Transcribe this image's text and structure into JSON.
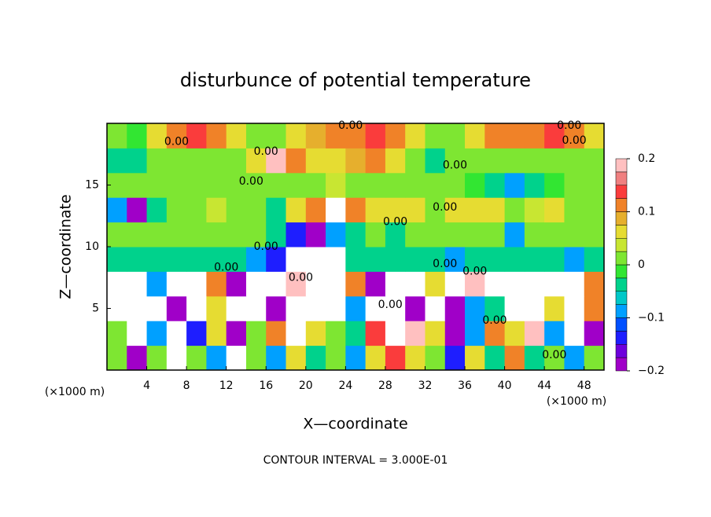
{
  "chart_data": {
    "type": "heatmap",
    "title": "disturbunce of potential temperature",
    "x_label": "X—coordinate",
    "y_label": "Z—coordinate",
    "x_units": "(×1000 m)",
    "y_units": "(×1000 m)",
    "annotation": "CONTOUR INTERVAL = 3.000E-01",
    "xlim": [
      0,
      50
    ],
    "ylim": [
      0,
      20
    ],
    "xticks": [
      4,
      8,
      12,
      16,
      20,
      24,
      28,
      32,
      36,
      40,
      44,
      48
    ],
    "yticks": [
      5,
      10,
      15
    ],
    "x": [
      1,
      3,
      5,
      7,
      9,
      11,
      13,
      15,
      17,
      19,
      21,
      23,
      25,
      27,
      29,
      31,
      33,
      35,
      37,
      39,
      41,
      43,
      45,
      47,
      49
    ],
    "y": [
      1,
      3,
      5,
      7,
      9,
      11,
      13,
      15,
      17,
      19
    ],
    "z": [
      [
        0.02,
        -0.2,
        0.0,
        -0.3,
        0.0,
        -0.1,
        -0.3,
        0.0,
        -0.1,
        0.05,
        -0.05,
        0.0,
        -0.1,
        0.05,
        0.15,
        0.05,
        0.0,
        -0.15,
        0.05,
        -0.05,
        0.1,
        -0.05,
        0.0,
        -0.1,
        0.02
      ],
      [
        0.0,
        -0.3,
        -0.1,
        -0.3,
        -0.15,
        0.05,
        -0.2,
        0.0,
        0.1,
        -0.3,
        0.05,
        0.0,
        -0.05,
        0.15,
        0.3,
        0.2,
        0.05,
        -0.2,
        -0.1,
        0.1,
        0.05,
        0.2,
        -0.1,
        -0.3,
        -0.2
      ],
      [
        -0.3,
        -0.25,
        -0.3,
        -0.2,
        -0.3,
        0.05,
        -0.3,
        -0.3,
        -0.2,
        -0.3,
        -0.3,
        -0.3,
        -0.1,
        -0.3,
        -0.25,
        -0.2,
        -0.3,
        -0.2,
        -0.1,
        -0.05,
        -0.3,
        -0.25,
        0.05,
        -0.3,
        0.1
      ],
      [
        -0.3,
        0.25,
        -0.1,
        0.3,
        -0.25,
        0.1,
        -0.2,
        0.3,
        -0.3,
        0.2,
        -0.25,
        -0.3,
        0.1,
        -0.2,
        -0.3,
        -0.25,
        0.05,
        -0.3,
        0.2,
        0.25,
        -0.3,
        0.3,
        0.25,
        -0.3,
        0.1
      ],
      [
        -0.05,
        -0.05,
        -0.05,
        -0.05,
        -0.05,
        -0.05,
        -0.05,
        -0.1,
        -0.15,
        -0.3,
        -0.3,
        -0.25,
        -0.05,
        -0.05,
        -0.05,
        -0.05,
        -0.05,
        -0.1,
        -0.05,
        -0.05,
        -0.05,
        -0.05,
        -0.05,
        -0.1,
        -0.05
      ],
      [
        0.02,
        0.0,
        0.0,
        0.02,
        0.02,
        0.02,
        0.0,
        0.0,
        -0.05,
        -0.15,
        -0.2,
        -0.1,
        -0.05,
        0.02,
        -0.05,
        0.0,
        0.02,
        0.0,
        0.0,
        0.02,
        -0.1,
        0.0,
        0.02,
        0.0,
        0.02
      ],
      [
        -0.1,
        -0.2,
        -0.05,
        0.0,
        0.02,
        0.03,
        0.02,
        0.0,
        -0.05,
        0.05,
        0.1,
        0.25,
        0.1,
        0.05,
        0.05,
        0.05,
        0.02,
        0.05,
        0.05,
        0.05,
        0.02,
        0.03,
        0.05,
        0.02,
        0.02
      ],
      [
        0.02,
        0.02,
        0.02,
        0.02,
        0.02,
        0.02,
        0.02,
        0.02,
        0.0,
        0.02,
        0.02,
        0.03,
        0.02,
        0.02,
        0.02,
        0.0,
        0.0,
        0.0,
        -0.02,
        -0.05,
        -0.1,
        -0.05,
        -0.02,
        0.0,
        0.0
      ],
      [
        -0.05,
        -0.05,
        0.0,
        0.02,
        0.0,
        0.0,
        0.02,
        0.05,
        0.18,
        0.1,
        0.05,
        0.05,
        0.08,
        0.12,
        0.05,
        0.0,
        -0.05,
        0.02,
        0.0,
        0.02,
        0.0,
        0.0,
        0.0,
        0.02,
        0.02
      ],
      [
        0.0,
        -0.02,
        0.05,
        0.1,
        0.15,
        0.12,
        0.05,
        0.0,
        0.02,
        0.05,
        0.08,
        0.1,
        0.12,
        0.15,
        0.1,
        0.05,
        0.0,
        0.02,
        0.05,
        0.1,
        0.12,
        0.1,
        0.15,
        0.1,
        0.05
      ]
    ],
    "clim": [
      -0.2,
      0.2
    ],
    "colors": [
      "#a000c8",
      "#6e00dc",
      "#1e1eff",
      "#0050ff",
      "#00a0ff",
      "#00c8c8",
      "#00d28c",
      "#32e632",
      "#7ee632",
      "#c8e632",
      "#e6dc32",
      "#e6af2d",
      "#f08228",
      "#fa3c3c",
      "#f08080",
      "#ffc0c0"
    ],
    "out_of_range_color": "#ffffff",
    "cticks": [
      {
        "value": -0.2,
        "label": "−0.2"
      },
      {
        "value": -0.1,
        "label": "−0.1"
      },
      0,
      0.1,
      0.2
    ],
    "contour_labels": [
      {
        "x": 7,
        "y": 18.5,
        "label": "0.00"
      },
      {
        "x": 16,
        "y": 17.7,
        "label": "0.00"
      },
      {
        "x": 35,
        "y": 16.6,
        "label": "0.00"
      },
      {
        "x": 14.5,
        "y": 15.3,
        "label": "0.00"
      },
      {
        "x": 34,
        "y": 13.2,
        "label": "0.00"
      },
      {
        "x": 29,
        "y": 12,
        "label": "0.00"
      },
      {
        "x": 16,
        "y": 10,
        "label": "0.00"
      },
      {
        "x": 12,
        "y": 8.3,
        "label": "0.00"
      },
      {
        "x": 19.5,
        "y": 7.5,
        "label": "0.00"
      },
      {
        "x": 34,
        "y": 8.6,
        "label": "0.00"
      },
      {
        "x": 37,
        "y": 8,
        "label": "0.00"
      },
      {
        "x": 28.5,
        "y": 5.3,
        "label": "0.00"
      },
      {
        "x": 39,
        "y": 4,
        "label": "0.00"
      },
      {
        "x": 45,
        "y": 1.2,
        "label": "0.00"
      },
      {
        "x": 24.5,
        "y": 19.8,
        "label": "0.00"
      },
      {
        "x": 46.5,
        "y": 19.8,
        "label": "0.00"
      },
      {
        "x": 47,
        "y": 18.6,
        "label": "0.00"
      }
    ]
  }
}
